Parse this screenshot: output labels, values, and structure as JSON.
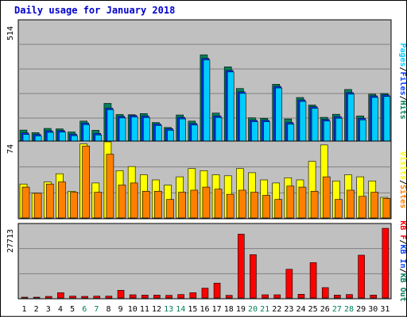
{
  "chart_data": [
    {
      "type": "bar",
      "title": "Daily usage for January 2018",
      "panel": "top",
      "ymax_label": "514",
      "ylim": [
        0,
        514
      ],
      "legend_right": [
        "Pages",
        "/",
        "Files",
        "/",
        "Hits"
      ],
      "legend_colors": [
        "#00ccff",
        "#000000",
        "#0040ff",
        "#000000",
        "#00805c"
      ],
      "categories": [
        "1",
        "2",
        "3",
        "4",
        "5",
        "6",
        "7",
        "8",
        "9",
        "10",
        "11",
        "12",
        "13",
        "14",
        "15",
        "16",
        "17",
        "18",
        "19",
        "20",
        "21",
        "22",
        "23",
        "24",
        "25",
        "26",
        "27",
        "28",
        "29",
        "30",
        "31"
      ],
      "weekend_days": [
        "6",
        "7",
        "13",
        "14",
        "20",
        "21",
        "27",
        "28"
      ],
      "series": [
        {
          "name": "Hits",
          "color": "#00805c",
          "values": [
            50,
            39,
            57,
            55,
            42,
            88,
            49,
            163,
            116,
            115,
            120,
            82,
            61,
            114,
            88,
            369,
            122,
            318,
            226,
            102,
            100,
            244,
            97,
            188,
            156,
            104,
            117,
            222,
            110,
            202,
            205
          ]
        },
        {
          "name": "Files",
          "color": "#0040ff",
          "values": [
            38,
            32,
            47,
            48,
            33,
            80,
            36,
            143,
            108,
            112,
            110,
            76,
            56,
            104,
            78,
            354,
            110,
            303,
            212,
            92,
            92,
            235,
            82,
            178,
            149,
            95,
            107,
            209,
            100,
            195,
            199
          ]
        },
        {
          "name": "Pages",
          "color": "#00ccff",
          "values": [
            38,
            32,
            47,
            48,
            33,
            80,
            36,
            143,
            108,
            112,
            110,
            76,
            56,
            104,
            78,
            354,
            110,
            303,
            212,
            92,
            92,
            235,
            82,
            178,
            149,
            95,
            107,
            209,
            100,
            195,
            199
          ]
        }
      ]
    },
    {
      "type": "bar",
      "panel": "middle",
      "ymax_label": "74",
      "ylim": [
        0,
        74
      ],
      "legend_right": [
        "Visits",
        "/",
        "Sites"
      ],
      "legend_colors": [
        "#ffff00",
        "#000000",
        "#ff8000"
      ],
      "categories": [
        "1",
        "2",
        "3",
        "4",
        "5",
        "6",
        "7",
        "8",
        "9",
        "10",
        "11",
        "12",
        "13",
        "14",
        "15",
        "16",
        "17",
        "18",
        "19",
        "20",
        "21",
        "22",
        "23",
        "24",
        "25",
        "26",
        "27",
        "28",
        "29",
        "30",
        "31"
      ],
      "series": [
        {
          "name": "Visits",
          "color": "#ffff00",
          "values": [
            33,
            24,
            35,
            43,
            26,
            72,
            34,
            74,
            46,
            50,
            42,
            37,
            32,
            40,
            48,
            46,
            42,
            41,
            48,
            44,
            37,
            34,
            39,
            37,
            55,
            71,
            36,
            42,
            40,
            36,
            20
          ]
        },
        {
          "name": "Sites",
          "color": "#ff8000",
          "values": [
            30,
            24,
            33,
            35,
            25,
            70,
            25,
            62,
            32,
            34,
            26,
            26,
            18,
            25,
            27,
            30,
            28,
            23,
            27,
            25,
            22,
            18,
            31,
            30,
            26,
            40,
            18,
            27,
            21,
            25,
            19
          ]
        }
      ]
    },
    {
      "type": "bar",
      "panel": "bottom",
      "ymax_label": "27713",
      "ylim": [
        0,
        27713
      ],
      "legend_right": [
        "KB F",
        "/",
        "KB In",
        "/",
        "KB Out"
      ],
      "legend_colors": [
        "#ff0000",
        "#000000",
        "#0040ff",
        "#000000",
        "#00805c"
      ],
      "categories": [
        "1",
        "2",
        "3",
        "4",
        "5",
        "6",
        "7",
        "8",
        "9",
        "10",
        "11",
        "12",
        "13",
        "14",
        "15",
        "16",
        "17",
        "18",
        "19",
        "20",
        "21",
        "22",
        "23",
        "24",
        "25",
        "26",
        "27",
        "28",
        "29",
        "30",
        "31"
      ],
      "series": [
        {
          "name": "KB F",
          "color": "#ff0000",
          "values": [
            300,
            300,
            600,
            2000,
            700,
            600,
            700,
            700,
            2900,
            1200,
            1100,
            1100,
            1000,
            1300,
            2000,
            3700,
            5600,
            1000,
            24000,
            16300,
            1200,
            1200,
            10800,
            1400,
            13300,
            3900,
            1100,
            1300,
            16100,
            1100,
            26200
          ]
        }
      ]
    }
  ]
}
